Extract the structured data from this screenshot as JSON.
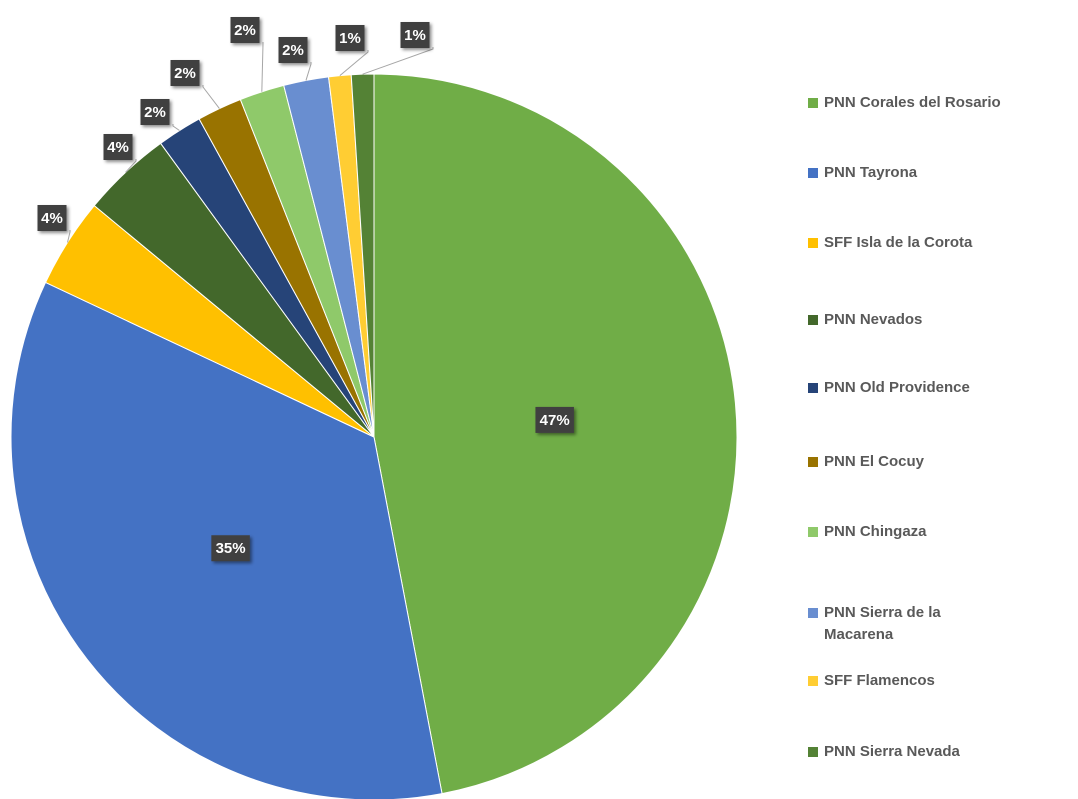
{
  "chart_data": {
    "type": "pie",
    "categories": [
      "PNN Corales del Rosario",
      "PNN Tayrona",
      "SFF Isla de la Corota",
      "PNN Nevados",
      "PNN Old Providence",
      "PNN El Cocuy",
      "PNN Chingaza",
      "PNN Sierra de la Macarena",
      "SFF Flamencos",
      "PNN Sierra Nevada"
    ],
    "values": [
      47,
      35,
      4,
      4,
      2,
      2,
      2,
      2,
      1,
      1
    ],
    "value_labels": [
      "47%",
      "35%",
      "4%",
      "4%",
      "2%",
      "2%",
      "2%",
      "2%",
      "1%",
      "1%"
    ],
    "colors": [
      "#70ad47",
      "#4472c4",
      "#ffc000",
      "#43682b",
      "#264478",
      "#997300",
      "#8fc96a",
      "#698ed0",
      "#ffcd33",
      "#548235"
    ],
    "legend": "right"
  }
}
